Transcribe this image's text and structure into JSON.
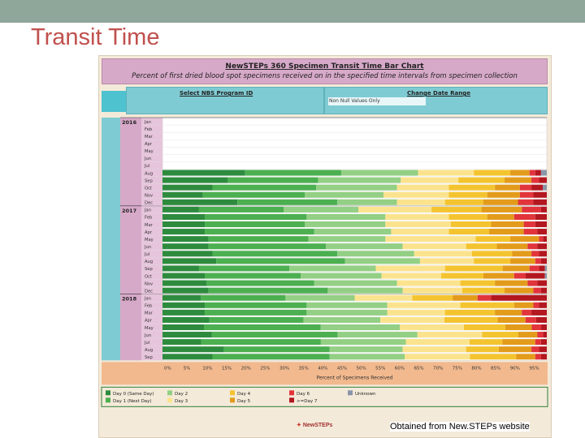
{
  "slide": {
    "title": "Transit Time",
    "credit": "Obtained from New.STEPs website"
  },
  "panel": {
    "title": "NewSTEPs 360 Specimen Transit Time Bar Chart",
    "subtitle": "Percent of first dried blood spot specimens received on in the specified time intervals from specimen collection",
    "filter1_label": "Select NBS Program ID",
    "filter2_label": "Change Date Range",
    "filter_value": "Non Null Values Only",
    "logo": "NewSTEPs"
  },
  "chart_data": {
    "type": "bar",
    "orientation": "horizontal-stacked",
    "xlabel": "Percent of Specimens Received",
    "xlim": [
      0,
      100
    ],
    "x_ticks": [
      "0%",
      "5%",
      "10%",
      "15%",
      "20%",
      "25%",
      "30%",
      "35%",
      "40%",
      "45%",
      "50%",
      "55%",
      "60%",
      "65%",
      "70%",
      "75%",
      "80%",
      "85%",
      "90%",
      "95%"
    ],
    "years": [
      {
        "year": "2016",
        "months": [
          "Jan",
          "Feb",
          "Mar",
          "Apr",
          "May",
          "Jun",
          "Jul",
          "Aug",
          "Sep",
          "Oct",
          "Nov",
          "Dec"
        ]
      },
      {
        "year": "2017",
        "months": [
          "Jan",
          "Feb",
          "Mar",
          "Apr",
          "May",
          "Jun",
          "Jul",
          "Aug",
          "Sep",
          "Oct",
          "Nov",
          "Dec"
        ]
      },
      {
        "year": "2018",
        "months": [
          "Jan",
          "Feb",
          "Mar",
          "Apr",
          "May",
          "Jun",
          "Jul",
          "Aug",
          "Sep"
        ]
      }
    ],
    "series": [
      {
        "name": "Day 0 (Same Day)",
        "color": "#2e8b3e"
      },
      {
        "name": "Day 1 (Next Day)",
        "color": "#4caf50"
      },
      {
        "name": "Day 2",
        "color": "#93cf84"
      },
      {
        "name": "Day 3",
        "color": "#fbe38e"
      },
      {
        "name": "Day 4",
        "color": "#f4c430"
      },
      {
        "name": "Day 5",
        "color": "#e39b1b"
      },
      {
        "name": "Day 6",
        "color": "#e2343b"
      },
      {
        "name": ">=Day 7",
        "color": "#b3171f"
      },
      {
        "name": "Unknown",
        "color": "#8a96a8"
      }
    ],
    "rows": [
      {
        "year": "2016",
        "month": "Jan",
        "values": null
      },
      {
        "year": "2016",
        "month": "Feb",
        "values": null
      },
      {
        "year": "2016",
        "month": "Mar",
        "values": null
      },
      {
        "year": "2016",
        "month": "Apr",
        "values": null
      },
      {
        "year": "2016",
        "month": "May",
        "values": null
      },
      {
        "year": "2016",
        "month": "Jun",
        "values": null
      },
      {
        "year": "2016",
        "month": "Jul",
        "values": null
      },
      {
        "year": "2016",
        "month": "Aug",
        "values": [
          21.5,
          25,
          20,
          14.5,
          9.5,
          5,
          1.5,
          1.5,
          1.5
        ]
      },
      {
        "year": "2016",
        "month": "Sep",
        "values": [
          17,
          23.5,
          21.5,
          15,
          12,
          7,
          2,
          2,
          0
        ]
      },
      {
        "year": "2016",
        "month": "Oct",
        "values": [
          13,
          27,
          21,
          13.5,
          12,
          6.5,
          3,
          3,
          1
        ]
      },
      {
        "year": "2016",
        "month": "Nov",
        "values": [
          10.5,
          26.5,
          20.5,
          17,
          10,
          8.5,
          3.5,
          3.5,
          0
        ]
      },
      {
        "year": "2016",
        "month": "Dec",
        "values": [
          19.5,
          26,
          15.5,
          12.5,
          10,
          9,
          4,
          3.5,
          0
        ]
      },
      {
        "year": "2017",
        "month": "Jan",
        "values": [
          9.5,
          22,
          19.5,
          19,
          13,
          10.5,
          5,
          1.5,
          0
        ]
      },
      {
        "year": "2017",
        "month": "Feb",
        "values": [
          11,
          26.5,
          20.5,
          16.5,
          10,
          7,
          5.5,
          3,
          0
        ]
      },
      {
        "year": "2017",
        "month": "Mar",
        "values": [
          11,
          26,
          21,
          17,
          10.5,
          8.5,
          3,
          3,
          0
        ]
      },
      {
        "year": "2017",
        "month": "Apr",
        "values": [
          11,
          28.5,
          20,
          15,
          10.5,
          9,
          3.5,
          2.5,
          0
        ]
      },
      {
        "year": "2017",
        "month": "May",
        "values": [
          12,
          26,
          20,
          23.5,
          9,
          7.5,
          1,
          1,
          0
        ]
      },
      {
        "year": "2017",
        "month": "Jun",
        "values": [
          12,
          30.5,
          20,
          16.5,
          8,
          8,
          2.5,
          2.5,
          0
        ]
      },
      {
        "year": "2017",
        "month": "Jul",
        "values": [
          13,
          32.5,
          20,
          15,
          10.5,
          5,
          2,
          2,
          0
        ]
      },
      {
        "year": "2017",
        "month": "Aug",
        "values": [
          14,
          33.5,
          19.5,
          14,
          9.5,
          6.5,
          1.5,
          1.5,
          0
        ]
      },
      {
        "year": "2017",
        "month": "Sep",
        "values": [
          9.5,
          23.5,
          22.5,
          18,
          15,
          7,
          2.5,
          1.5,
          0.5
        ]
      },
      {
        "year": "2017",
        "month": "Oct",
        "values": [
          11,
          25,
          21,
          15.5,
          11,
          8,
          3,
          5,
          0.5
        ]
      },
      {
        "year": "2017",
        "month": "Nov",
        "values": [
          11.5,
          28,
          21.5,
          16.5,
          9,
          8.5,
          2.5,
          2.5,
          0
        ]
      },
      {
        "year": "2017",
        "month": "Dec",
        "values": [
          12,
          31,
          19.5,
          15.5,
          11,
          7.5,
          2,
          1.5,
          0
        ]
      },
      {
        "year": "2018",
        "month": "Jan",
        "values": [
          10,
          22,
          18,
          15,
          10.5,
          6.5,
          3.5,
          14.5,
          0
        ]
      },
      {
        "year": "2018",
        "month": "Feb",
        "values": [
          11,
          26.5,
          21,
          19,
          14,
          5,
          1.5,
          2,
          0
        ]
      },
      {
        "year": "2018",
        "month": "Mar",
        "values": [
          11,
          26.5,
          21,
          15,
          13,
          7,
          2.5,
          4,
          0
        ]
      },
      {
        "year": "2018",
        "month": "Apr",
        "values": [
          11,
          22,
          18,
          15,
          12.5,
          6.5,
          2.5,
          2.5,
          0
        ]
      },
      {
        "year": "2018",
        "month": "May",
        "values": [
          11,
          31,
          21,
          17,
          11,
          7,
          2.5,
          1.5,
          0
        ]
      },
      {
        "year": "2018",
        "month": "Jun",
        "values": [
          13,
          33,
          21,
          17,
          9.5,
          5,
          1.5,
          1,
          0
        ]
      },
      {
        "year": "2018",
        "month": "Jul",
        "values": [
          10,
          31,
          22,
          16.5,
          8.5,
          8.5,
          1.5,
          1.5,
          0
        ]
      },
      {
        "year": "2018",
        "month": "Aug",
        "values": [
          16,
          27.5,
          19,
          16.5,
          8.5,
          8.5,
          2,
          2,
          0
        ]
      },
      {
        "year": "2018",
        "month": "Sep",
        "values": [
          13,
          30.5,
          19.5,
          17,
          12,
          5,
          1.5,
          1.5,
          0
        ]
      }
    ]
  }
}
